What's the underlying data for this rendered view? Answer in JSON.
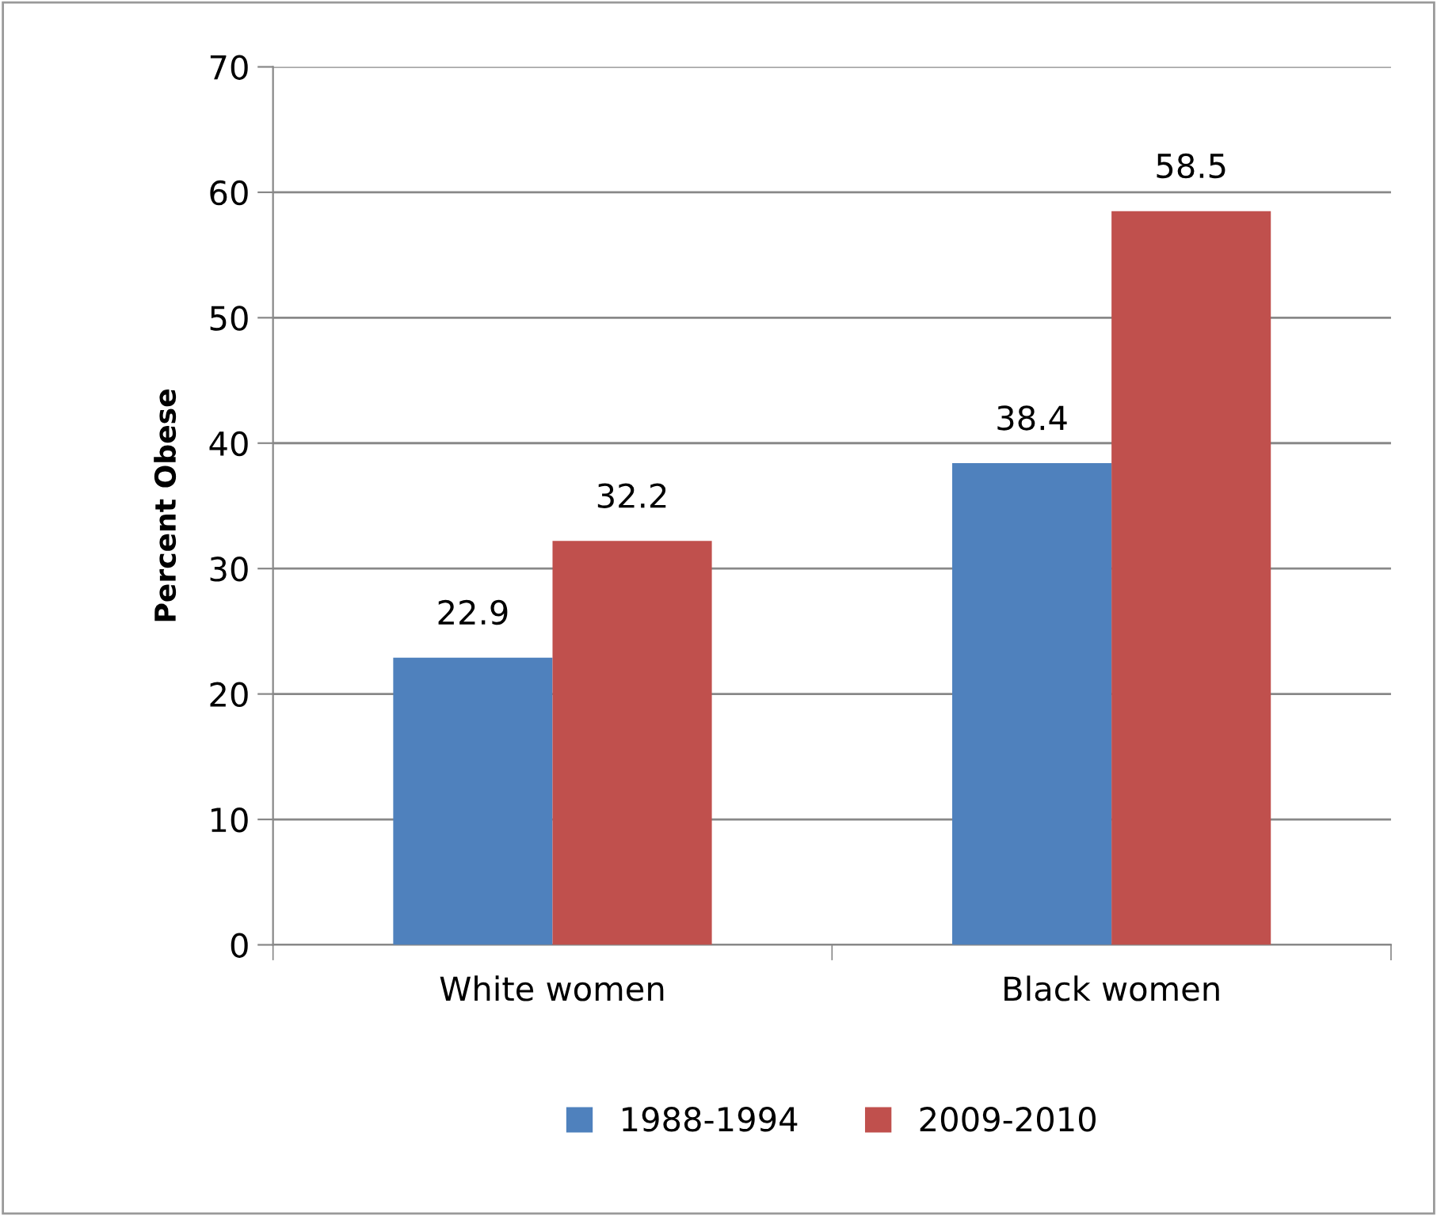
{
  "chart_data": {
    "type": "bar",
    "ylabel": "Percent Obese",
    "categories": [
      "White women",
      "Black women"
    ],
    "series": [
      {
        "name": "1988-1994",
        "color": "#4f81bd",
        "values": [
          22.9,
          38.4
        ]
      },
      {
        "name": "2009-2010",
        "color": "#c0504d",
        "values": [
          32.2,
          58.5
        ]
      }
    ],
    "ylim": [
      0,
      70
    ],
    "yticks": [
      0,
      10,
      20,
      30,
      40,
      50,
      60,
      70
    ],
    "grid": "y",
    "legend": "bottom",
    "data_labels": true
  }
}
